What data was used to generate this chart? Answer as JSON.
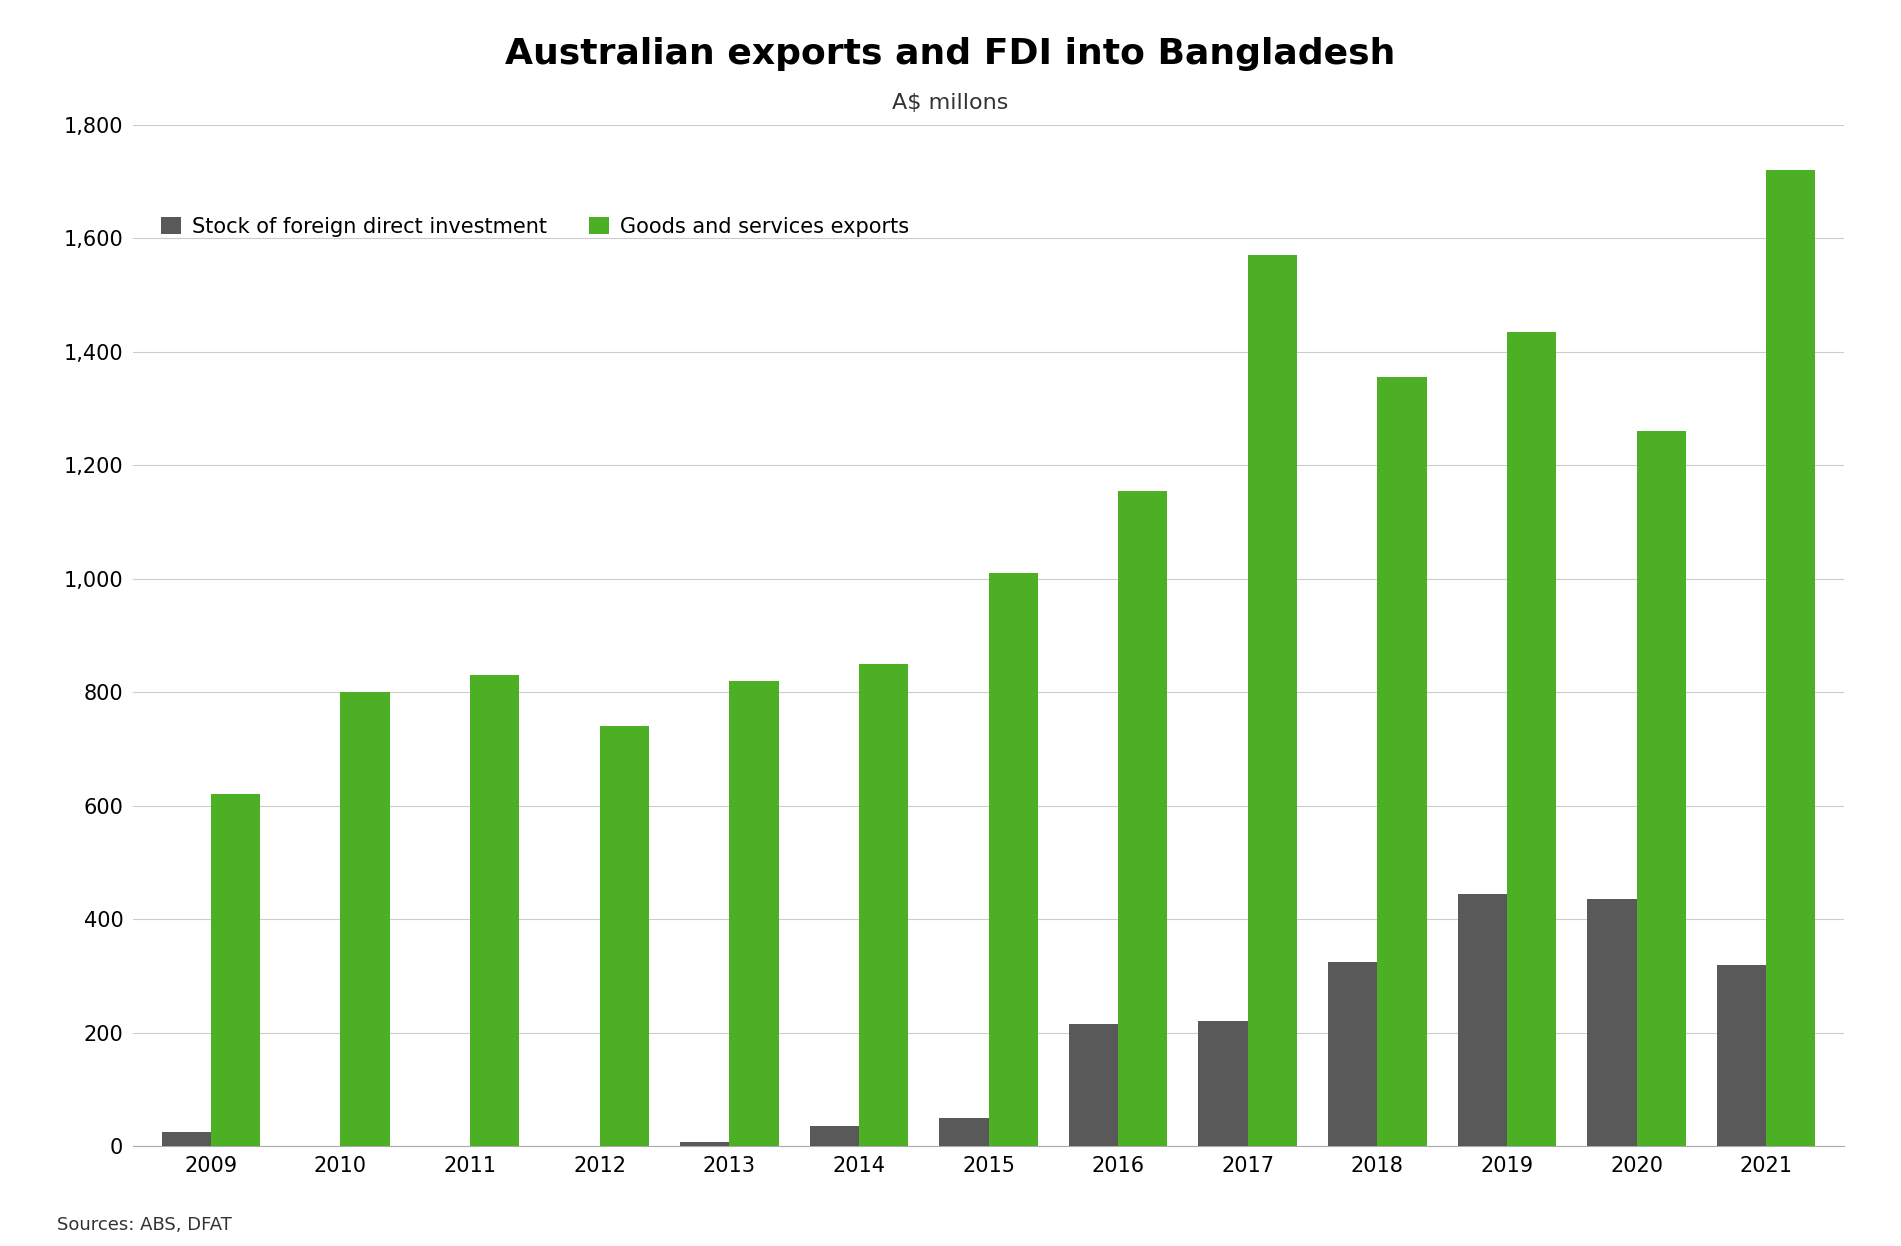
{
  "title": "Australian exports and FDI into Bangladesh",
  "subtitle": "A$ millons",
  "years": [
    2009,
    2010,
    2011,
    2012,
    2013,
    2014,
    2015,
    2016,
    2017,
    2018,
    2019,
    2020,
    2021
  ],
  "fdi": [
    25,
    0,
    0,
    0,
    8,
    35,
    50,
    215,
    220,
    325,
    445,
    435,
    320
  ],
  "exports": [
    620,
    800,
    830,
    740,
    820,
    850,
    1010,
    1155,
    1570,
    1355,
    1435,
    1260,
    1720
  ],
  "fdi_color": "#595959",
  "exports_color": "#4caf24",
  "legend_fdi": "Stock of foreign direct investment",
  "legend_exports": "Goods and services exports",
  "source_text": "Sources: ABS, DFAT",
  "ylim": [
    0,
    1800
  ],
  "yticks": [
    0,
    200,
    400,
    600,
    800,
    1000,
    1200,
    1400,
    1600,
    1800
  ],
  "background_color": "#ffffff",
  "title_fontsize": 26,
  "subtitle_fontsize": 16,
  "axis_fontsize": 15,
  "legend_fontsize": 15,
  "source_fontsize": 13,
  "bar_width": 0.38,
  "grid_color": "#cccccc"
}
